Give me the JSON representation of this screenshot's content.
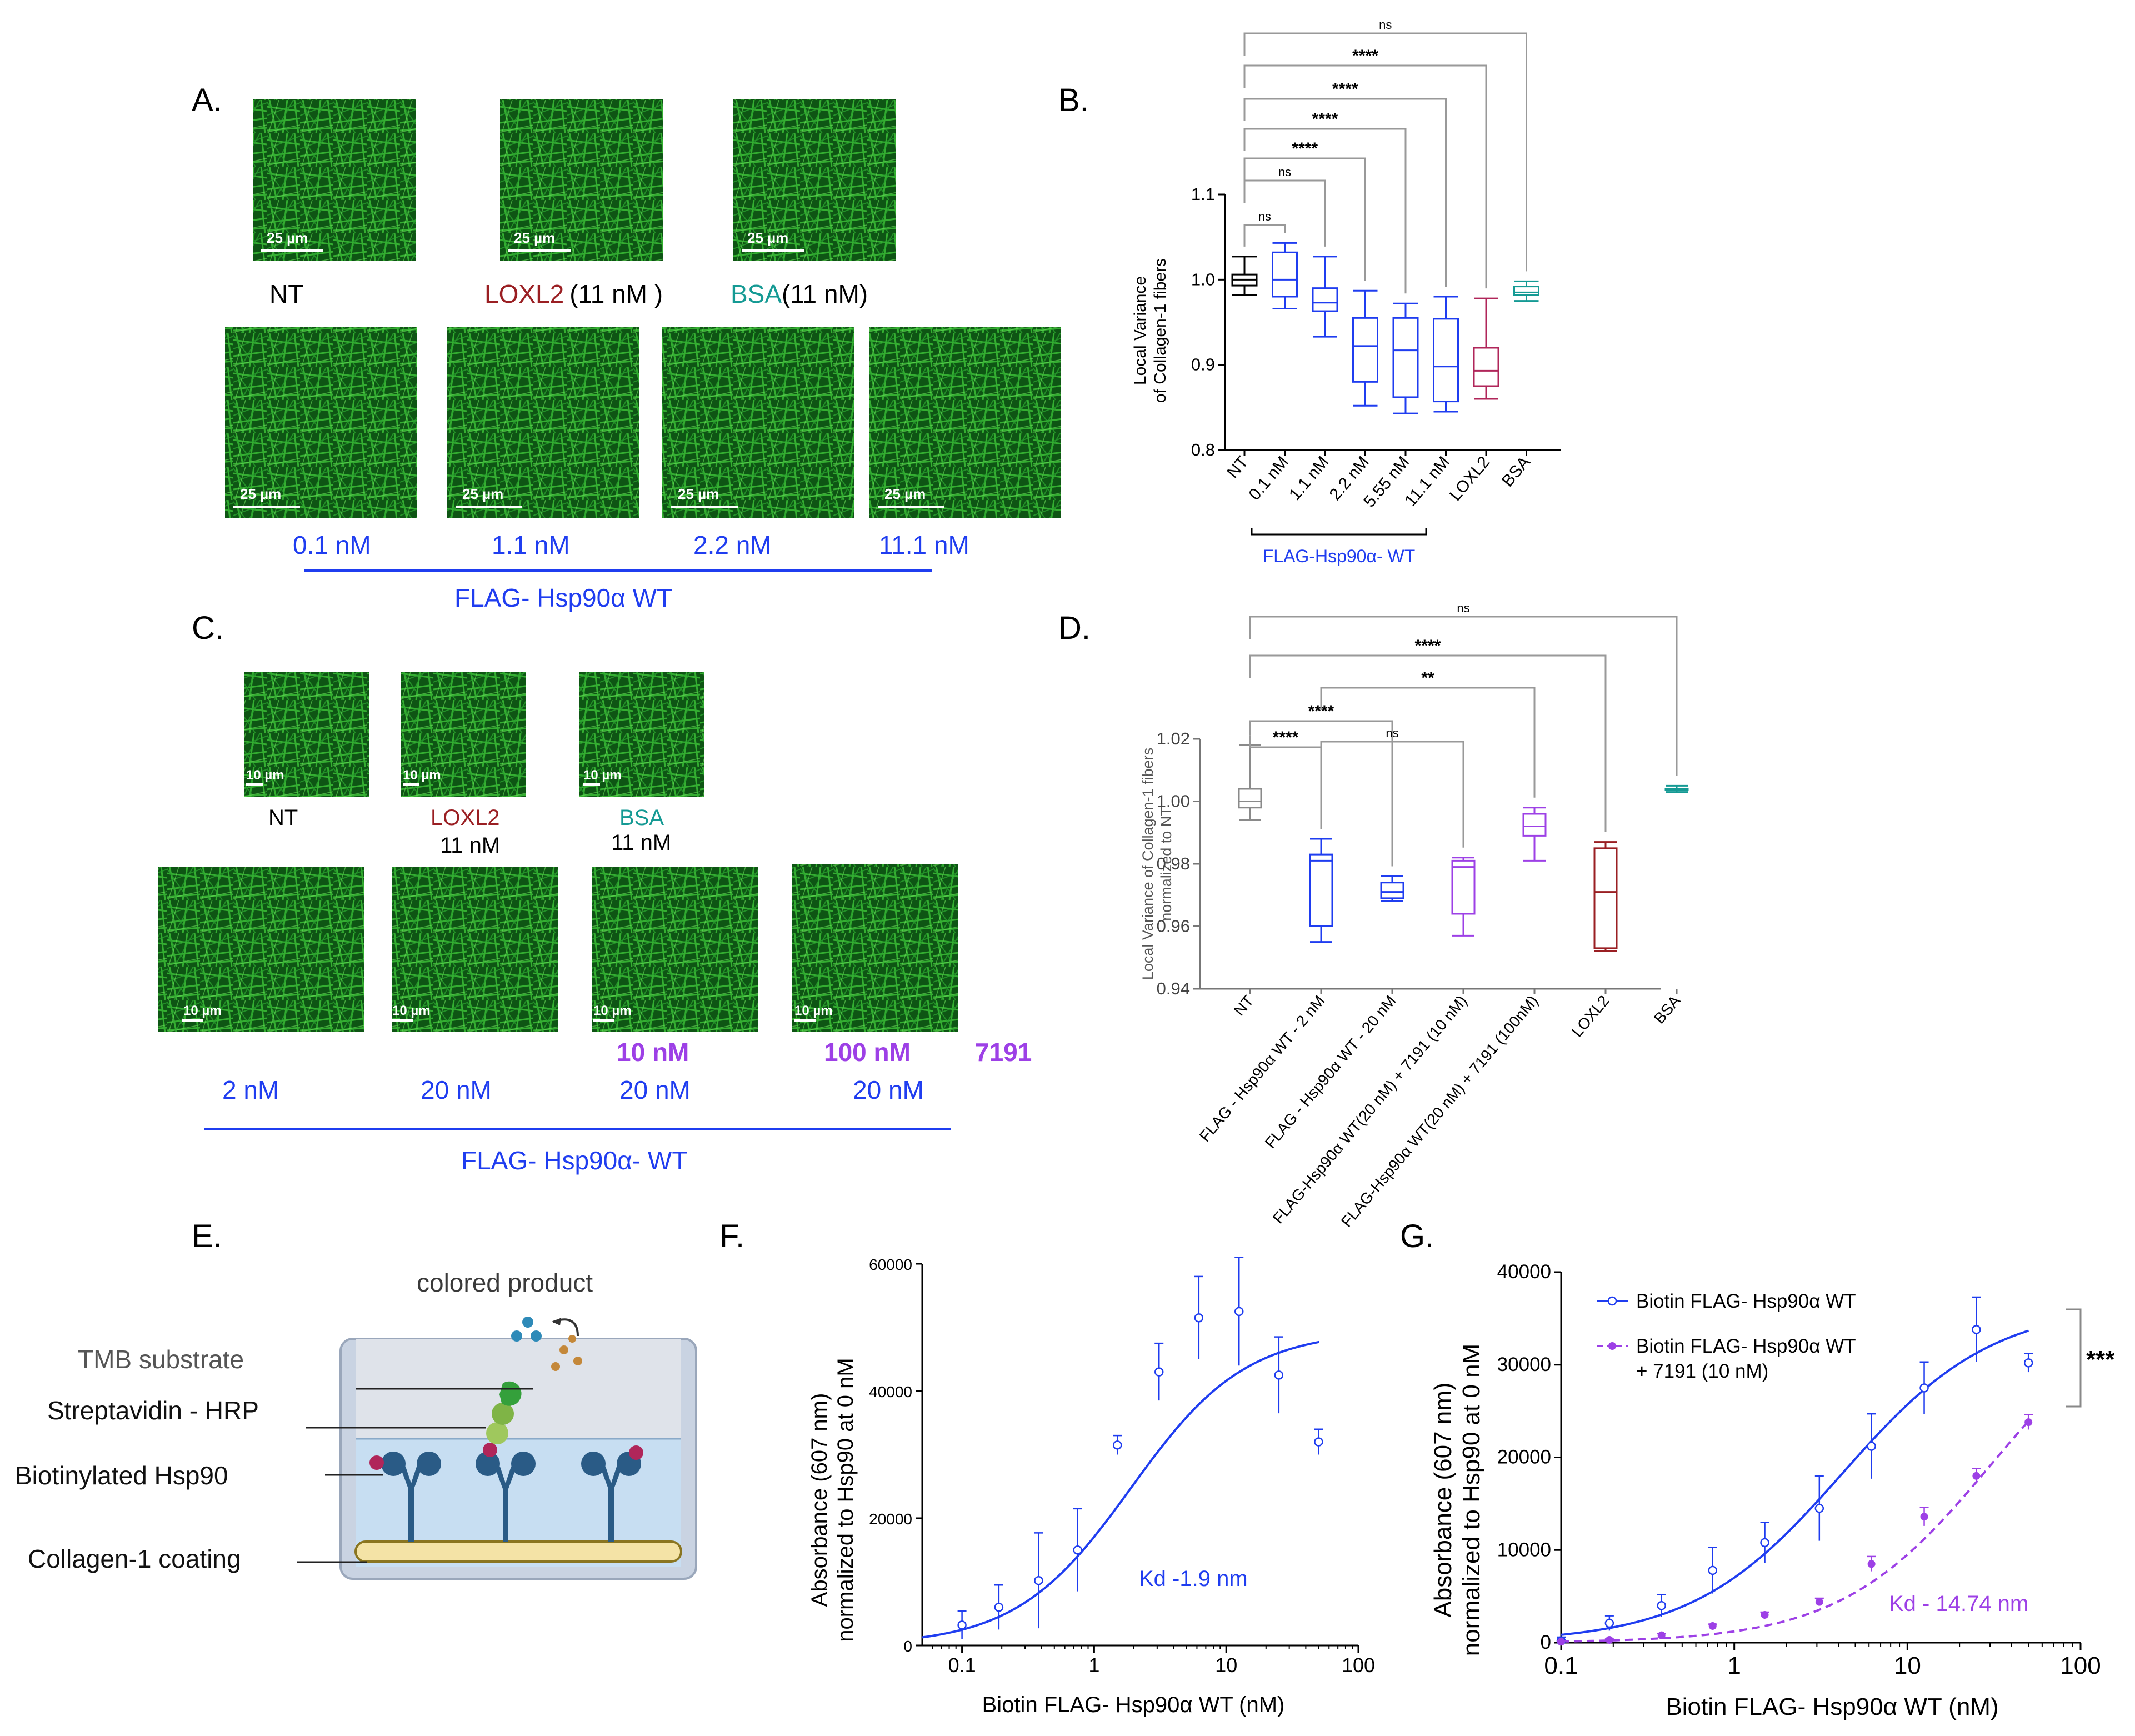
{
  "panel_letters": {
    "A": "A.",
    "B": "B.",
    "C": "C.",
    "D": "D.",
    "E": "E.",
    "F": "F.",
    "G": "G."
  },
  "colors": {
    "blue": "#1f3df0",
    "red": "#9a1f23",
    "teal": "#159a94",
    "purple": "#9d40e6",
    "black": "#000000",
    "gray": "#8a8a8a",
    "magenta": "#b0265a",
    "green": "#1fa02b"
  },
  "panel_a": {
    "scale_bar": "25 µm",
    "top_labels": [
      {
        "name": "NT",
        "conc": ""
      },
      {
        "name": "LOXL2",
        "conc": "(11 nM )"
      },
      {
        "name": "BSA",
        "conc": "(11 nM)"
      }
    ],
    "bottom_labels": [
      "0.1 nM",
      "1.1 nM",
      "2.2 nM",
      "11.1 nM"
    ],
    "group_label": "FLAG- Hsp90α WT"
  },
  "panel_c": {
    "scale_bar": "10 µm",
    "top_labels": [
      {
        "name": "NT",
        "conc": ""
      },
      {
        "name": "LOXL2",
        "conc": "11 nM"
      },
      {
        "name": "BSA",
        "conc": "11 nM"
      }
    ],
    "bottom_conc": [
      "2 nM",
      "20 nM",
      "20 nM",
      "20 nM"
    ],
    "inhibitor_conc": [
      "10 nM",
      "100 nM"
    ],
    "inhibitor_name": "7191",
    "group_label": "FLAG- Hsp90α- WT"
  },
  "panel_e": {
    "product": "colored product",
    "labels": [
      "TMB substrate",
      "Streptavidin - HRP",
      "Biotinylated Hsp90",
      "Collagen-1 coating"
    ]
  },
  "chart_data": [
    {
      "id": "B",
      "type": "box",
      "ylabel": [
        "Local Variance",
        "of Collagen-1 fibers"
      ],
      "ylim": [
        0.8,
        1.1
      ],
      "yticks": [
        0.8,
        0.9,
        1.0,
        1.1
      ],
      "ytick_labels": [
        "0.8",
        "0.9",
        "1.0",
        "1.1"
      ],
      "categories": [
        "NT",
        "0.1 nM",
        "1.1 nM",
        "2.2 nM",
        "5.55 nM",
        "11.1 nM",
        "LOXL2",
        "BSA"
      ],
      "bracket_label": "FLAG-Hsp90α- WT",
      "boxes": [
        {
          "min": 0.982,
          "q1": 0.993,
          "median": 1.0,
          "q3": 1.006,
          "max": 1.027,
          "color": "#000000"
        },
        {
          "min": 0.966,
          "q1": 0.98,
          "median": 1.0,
          "q3": 1.032,
          "max": 1.043,
          "color": "#1f3df0"
        },
        {
          "min": 0.933,
          "q1": 0.963,
          "median": 0.973,
          "q3": 0.99,
          "max": 1.027,
          "color": "#1f3df0"
        },
        {
          "min": 0.852,
          "q1": 0.88,
          "median": 0.922,
          "q3": 0.955,
          "max": 0.987,
          "color": "#1f3df0"
        },
        {
          "min": 0.843,
          "q1": 0.862,
          "median": 0.917,
          "q3": 0.955,
          "max": 0.972,
          "color": "#1f3df0"
        },
        {
          "min": 0.845,
          "q1": 0.857,
          "median": 0.898,
          "q3": 0.954,
          "max": 0.98,
          "color": "#1f3df0"
        },
        {
          "min": 0.86,
          "q1": 0.875,
          "median": 0.893,
          "q3": 0.92,
          "max": 0.978,
          "color": "#b0265a"
        },
        {
          "min": 0.975,
          "q1": 0.982,
          "median": 0.985,
          "q3": 0.992,
          "max": 0.998,
          "color": "#159a94"
        }
      ],
      "significance": [
        {
          "from": 0,
          "to": 1,
          "label": "ns"
        },
        {
          "from": 0,
          "to": 2,
          "label": "ns"
        },
        {
          "from": 0,
          "to": 3,
          "label": "****"
        },
        {
          "from": 0,
          "to": 4,
          "label": "****"
        },
        {
          "from": 0,
          "to": 5,
          "label": "****"
        },
        {
          "from": 0,
          "to": 6,
          "label": "****"
        },
        {
          "from": 0,
          "to": 7,
          "label": "ns"
        }
      ]
    },
    {
      "id": "D",
      "type": "box",
      "ylabel": [
        "Local Variance of Collagen-1 fibers",
        "normalized to NT"
      ],
      "ylim": [
        0.94,
        1.02
      ],
      "yticks": [
        0.94,
        0.96,
        0.98,
        1.0,
        1.02
      ],
      "ytick_labels": [
        "0.94",
        "0.96",
        "0.98",
        "1.00",
        "1.02"
      ],
      "categories": [
        "NT",
        "FLAG - Hsp90α WT - 2 nM",
        "FLAG - Hsp90α WT - 20 nM",
        "FLAG-Hsp90α WT(20 nM) + 7191 (10 nM)",
        "FLAG-Hsp90α WT(20 nM) + 7191 (100nM)",
        "LOXL2",
        "BSA"
      ],
      "boxes": [
        {
          "min": 0.994,
          "q1": 0.998,
          "median": 1.0,
          "q3": 1.004,
          "max": 1.018,
          "color": "#8a8a8a"
        },
        {
          "min": 0.955,
          "q1": 0.96,
          "median": 0.981,
          "q3": 0.983,
          "max": 0.988,
          "color": "#1f3df0"
        },
        {
          "min": 0.968,
          "q1": 0.969,
          "median": 0.971,
          "q3": 0.974,
          "max": 0.976,
          "color": "#1f3df0"
        },
        {
          "min": 0.957,
          "q1": 0.964,
          "median": 0.979,
          "q3": 0.981,
          "max": 0.982,
          "color": "#9d40e6"
        },
        {
          "min": 0.981,
          "q1": 0.989,
          "median": 0.992,
          "q3": 0.996,
          "max": 0.998,
          "color": "#9d40e6"
        },
        {
          "min": 0.952,
          "q1": 0.953,
          "median": 0.971,
          "q3": 0.985,
          "max": 0.987,
          "color": "#9a1f23"
        },
        {
          "min": 1.003,
          "q1": 1.004,
          "median": 1.004,
          "q3": 1.004,
          "max": 1.005,
          "color": "#159a94"
        }
      ],
      "significance": [
        {
          "from": 0,
          "to": 1,
          "label": "****"
        },
        {
          "from": 0,
          "to": 2,
          "label": "****"
        },
        {
          "from": 1,
          "to": 3,
          "label": "ns"
        },
        {
          "from": 1,
          "to": 4,
          "label": "**"
        },
        {
          "from": 0,
          "to": 5,
          "label": "****"
        },
        {
          "from": 0,
          "to": 6,
          "label": "ns"
        }
      ]
    },
    {
      "id": "F",
      "type": "scatter",
      "xscale": "log",
      "xlabel": "Biotin FLAG- Hsp90α WT (nM)",
      "ylabel": [
        "Absorbance (607 nm)",
        "normalized  to Hsp90 at 0 nM"
      ],
      "xlim": [
        0.05,
        100
      ],
      "ylim": [
        0,
        60000
      ],
      "xticks": [
        0.1,
        1,
        10,
        100
      ],
      "xtick_labels": [
        "0.1",
        "1",
        "10",
        "100"
      ],
      "yticks": [
        0,
        20000,
        40000,
        60000
      ],
      "ytick_labels": [
        "0",
        "20000",
        "40000",
        "60000"
      ],
      "series": [
        {
          "x": [
            0.1,
            0.19,
            0.38,
            0.75,
            1.5,
            3.1,
            6.2,
            12.5,
            25,
            50
          ],
          "y": [
            3200,
            6000,
            10200,
            15000,
            31500,
            43000,
            51500,
            52500,
            42500,
            32000
          ],
          "err": [
            2200,
            3500,
            7500,
            6500,
            1500,
            4500,
            6500,
            8500,
            6000,
            2000
          ],
          "color": "#1f3df0"
        }
      ],
      "fit": {
        "bmax": 49500,
        "kd": 1.9,
        "color": "#1f3df0"
      },
      "annotation": "Kd -1.9 nm"
    },
    {
      "id": "G",
      "type": "scatter",
      "xscale": "log",
      "xlabel": "Biotin FLAG- Hsp90α WT (nM)",
      "ylabel": [
        "Absorbance (607 nm)",
        "normalized  to Hsp90 at 0 nM"
      ],
      "xlim": [
        0.1,
        100
      ],
      "ylim": [
        0,
        40000
      ],
      "xticks": [
        0.1,
        1,
        10,
        100
      ],
      "xtick_labels": [
        "0.1",
        "1",
        "10",
        "100"
      ],
      "yticks": [
        0,
        10000,
        20000,
        30000,
        40000
      ],
      "ytick_labels": [
        "0",
        "10000",
        "20000",
        "30000",
        "40000"
      ],
      "legend": [
        "Biotin FLAG- Hsp90α WT",
        "Biotin FLAG- Hsp90α WT",
        "+ 7191 (10 nM)"
      ],
      "series": [
        {
          "x": [
            0.1,
            0.19,
            0.38,
            0.75,
            1.5,
            3.1,
            6.2,
            12.5,
            25,
            50
          ],
          "y": [
            200,
            2100,
            4000,
            7800,
            10800,
            14500,
            21200,
            27500,
            33800,
            30200
          ],
          "err": [
            400,
            800,
            1200,
            2500,
            2200,
            3500,
            3500,
            2800,
            3500,
            1000
          ],
          "color": "#1f3df0",
          "style": "solid"
        },
        {
          "x": [
            0.1,
            0.19,
            0.38,
            0.75,
            1.5,
            3.1,
            6.2,
            12.5,
            25,
            50
          ],
          "y": [
            100,
            300,
            800,
            1800,
            3000,
            4400,
            8500,
            13600,
            18000,
            23800
          ],
          "err": [
            100,
            100,
            200,
            200,
            300,
            400,
            800,
            1000,
            800,
            800
          ],
          "color": "#9d40e6",
          "style": "dashed"
        }
      ],
      "fits": [
        {
          "bmax": 36500,
          "kd": 4.2,
          "color": "#1f3df0",
          "style": "solid"
        },
        {
          "bmax": 38500,
          "kd": 30.5,
          "color": "#9d40e6",
          "style": "dashed"
        }
      ],
      "significance": "***",
      "annotation": "Kd - 14.74 nm"
    }
  ]
}
